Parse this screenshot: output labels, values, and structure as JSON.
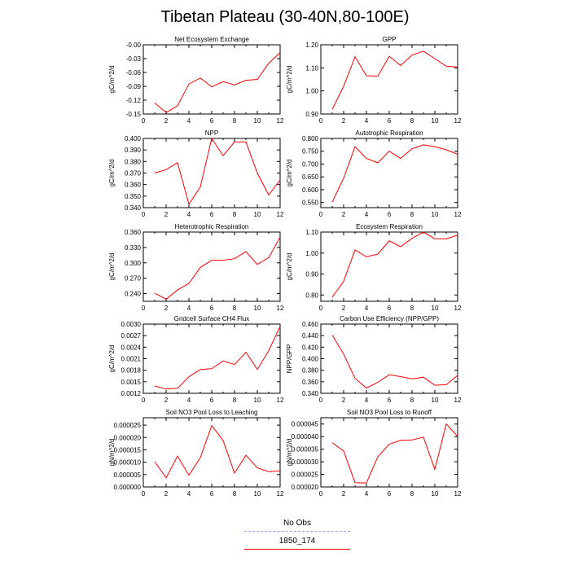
{
  "title": "Tibetan Plateau (30-40N,80-100E)",
  "legend": [
    {
      "label": "No Obs",
      "color": "#9999ff",
      "style": "dashed"
    },
    {
      "label": "1850_174",
      "color": "#ff0000",
      "style": "solid"
    }
  ],
  "chart_data": [
    {
      "type": "line",
      "title": "Net Ecosystem Exchange",
      "ylabel": "gC/m^2/d",
      "x": [
        1,
        2,
        3,
        4,
        5,
        6,
        7,
        8,
        9,
        10,
        11,
        12
      ],
      "xticks": [
        "0",
        "2",
        "4",
        "6",
        "8",
        "10",
        "12"
      ],
      "xlim": [
        0,
        12
      ],
      "yticks": [
        "-0.15",
        "-0.12",
        "-0.09",
        "-0.06",
        "-0.03",
        "-0.00"
      ],
      "ylim": [
        -0.15,
        0.0
      ],
      "series": [
        {
          "values": [
            -0.126,
            -0.147,
            -0.132,
            -0.085,
            -0.072,
            -0.091,
            -0.08,
            -0.087,
            -0.077,
            -0.075,
            -0.04,
            -0.017
          ],
          "color": "#ff0000"
        }
      ]
    },
    {
      "type": "line",
      "title": "GPP",
      "ylabel": "gC/m^2/d",
      "x": [
        1,
        2,
        3,
        4,
        5,
        6,
        7,
        8,
        9,
        10,
        11,
        12
      ],
      "xticks": [
        "0",
        "2",
        "4",
        "6",
        "8",
        "10",
        "12"
      ],
      "xlim": [
        0,
        12
      ],
      "yticks": [
        "0.90",
        "1.00",
        "1.10",
        "1.20"
      ],
      "ylim": [
        0.9,
        1.2
      ],
      "series": [
        {
          "values": [
            0.92,
            1.02,
            1.148,
            1.066,
            1.064,
            1.15,
            1.11,
            1.155,
            1.172,
            1.14,
            1.107,
            1.103
          ],
          "color": "#ff0000"
        }
      ]
    },
    {
      "type": "line",
      "title": "NPP",
      "ylabel": "gC/m^2/d",
      "x": [
        1,
        2,
        3,
        4,
        5,
        6,
        7,
        8,
        9,
        10,
        11,
        12
      ],
      "xticks": [
        "0",
        "2",
        "4",
        "6",
        "8",
        "10",
        "12"
      ],
      "xlim": [
        0,
        12
      ],
      "yticks": [
        "0.340",
        "0.350",
        "0.360",
        "0.370",
        "0.380",
        "0.390",
        "0.400"
      ],
      "ylim": [
        0.34,
        0.4
      ],
      "series": [
        {
          "values": [
            0.37,
            0.373,
            0.379,
            0.343,
            0.358,
            0.4,
            0.385,
            0.397,
            0.397,
            0.37,
            0.351,
            0.364
          ],
          "color": "#ff0000"
        }
      ]
    },
    {
      "type": "line",
      "title": "Autotrophic Respiration",
      "ylabel": "gC/m^2/d",
      "x": [
        1,
        2,
        3,
        4,
        5,
        6,
        7,
        8,
        9,
        10,
        11,
        12
      ],
      "xticks": [
        "0",
        "2",
        "4",
        "6",
        "8",
        "10",
        "12"
      ],
      "xlim": [
        0,
        12
      ],
      "yticks": [
        "0.550",
        "0.600",
        "0.650",
        "0.700",
        "0.750",
        "0.800"
      ],
      "ylim": [
        0.53,
        0.8
      ],
      "series": [
        {
          "values": [
            0.552,
            0.645,
            0.768,
            0.722,
            0.705,
            0.75,
            0.722,
            0.76,
            0.775,
            0.768,
            0.756,
            0.738
          ],
          "color": "#ff0000"
        }
      ]
    },
    {
      "type": "line",
      "title": "Heterotrophic Respiration",
      "ylabel": "gC/m^2/d",
      "x": [
        1,
        2,
        3,
        4,
        5,
        6,
        7,
        8,
        9,
        10,
        11,
        12
      ],
      "xticks": [
        "0",
        "2",
        "4",
        "6",
        "8",
        "10",
        "12"
      ],
      "xlim": [
        0,
        12
      ],
      "yticks": [
        "0.240",
        "0.270",
        "0.300",
        "0.330",
        "0.360"
      ],
      "ylim": [
        0.225,
        0.36
      ],
      "series": [
        {
          "values": [
            0.241,
            0.229,
            0.247,
            0.26,
            0.291,
            0.305,
            0.305,
            0.308,
            0.322,
            0.297,
            0.31,
            0.35
          ],
          "color": "#ff0000"
        }
      ]
    },
    {
      "type": "line",
      "title": "Ecosystem Respiration",
      "ylabel": "gC/m^2/d",
      "x": [
        1,
        2,
        3,
        4,
        5,
        6,
        7,
        8,
        9,
        10,
        11,
        12
      ],
      "xticks": [
        "0",
        "2",
        "4",
        "6",
        "8",
        "10",
        "12"
      ],
      "xlim": [
        0,
        12
      ],
      "yticks": [
        "0.80",
        "0.90",
        "1.00",
        "1.10"
      ],
      "ylim": [
        0.77,
        1.1
      ],
      "series": [
        {
          "values": [
            0.79,
            0.865,
            1.015,
            0.982,
            0.995,
            1.058,
            1.03,
            1.07,
            1.1,
            1.068,
            1.068,
            1.085
          ],
          "color": "#ff0000"
        }
      ]
    },
    {
      "type": "line",
      "title": "Gridcell Surface CH4 Flux",
      "ylabel": "gC/m^2/d",
      "x": [
        1,
        2,
        3,
        4,
        5,
        6,
        7,
        8,
        9,
        10,
        11,
        12
      ],
      "xticks": [
        "0",
        "2",
        "4",
        "6",
        "8",
        "10",
        "12"
      ],
      "xlim": [
        0,
        12
      ],
      "yticks": [
        "0.0012",
        "0.0015",
        "0.0018",
        "0.0021",
        "0.0024",
        "0.0027",
        "0.0030"
      ],
      "ylim": [
        0.0012,
        0.003
      ],
      "series": [
        {
          "values": [
            0.00139,
            0.00131,
            0.00133,
            0.00163,
            0.00182,
            0.00184,
            0.00204,
            0.00195,
            0.00227,
            0.00182,
            0.00231,
            0.00294
          ],
          "color": "#ff0000"
        }
      ]
    },
    {
      "type": "line",
      "title": "Carbon Use Efficiency (NPP/GPP)",
      "ylabel": "NPP/GPP",
      "x": [
        1,
        2,
        3,
        4,
        5,
        6,
        7,
        8,
        9,
        10,
        11,
        12
      ],
      "xticks": [
        "0",
        "2",
        "4",
        "6",
        "8",
        "10",
        "12"
      ],
      "xlim": [
        0,
        12
      ],
      "yticks": [
        "0.340",
        "0.360",
        "0.380",
        "0.400",
        "0.420",
        "0.440",
        "0.460"
      ],
      "ylim": [
        0.34,
        0.46
      ],
      "series": [
        {
          "values": [
            0.441,
            0.408,
            0.366,
            0.349,
            0.359,
            0.372,
            0.369,
            0.365,
            0.368,
            0.354,
            0.355,
            0.371
          ],
          "color": "#ff0000"
        }
      ]
    },
    {
      "type": "line",
      "title": "Soil NO3 Pool Loss to Leaching",
      "ylabel": "gN/m^2/d",
      "x": [
        1,
        2,
        3,
        4,
        5,
        6,
        7,
        8,
        9,
        10,
        11,
        12
      ],
      "xticks": [
        "0",
        "2",
        "4",
        "6",
        "8",
        "10",
        "12"
      ],
      "xlim": [
        0,
        12
      ],
      "yticks": [
        "0.000000",
        "0.000005",
        "0.000010",
        "0.000015",
        "0.000020",
        "0.000025"
      ],
      "ylim": [
        0.0,
        2.8e-05
      ],
      "series": [
        {
          "values": [
            1.02e-05,
            3.7e-06,
            1.25e-05,
            4.7e-06,
            1.18e-05,
            2.48e-05,
            1.88e-05,
            5.6e-06,
            1.28e-05,
            7.7e-06,
            6.2e-06,
            6.5e-06
          ],
          "color": "#ff0000"
        }
      ]
    },
    {
      "type": "line",
      "title": "Soil NO3 Pool Loss to Runoff",
      "ylabel": "gN/m^2/d",
      "x": [
        1,
        2,
        3,
        4,
        5,
        6,
        7,
        8,
        9,
        10,
        11,
        12
      ],
      "xticks": [
        "0",
        "2",
        "4",
        "6",
        "8",
        "10",
        "12"
      ],
      "xlim": [
        0,
        12
      ],
      "yticks": [
        "0.000020",
        "0.000025",
        "0.000030",
        "0.000035",
        "0.000040",
        "0.000045"
      ],
      "ylim": [
        2e-05,
        4.75e-05
      ],
      "series": [
        {
          "values": [
            3.76e-05,
            3.43e-05,
            2.17e-05,
            2.16e-05,
            3.2e-05,
            3.7e-05,
            3.85e-05,
            3.87e-05,
            3.98e-05,
            2.7e-05,
            4.5e-05,
            4.01e-05
          ],
          "color": "#ff0000"
        }
      ]
    }
  ]
}
